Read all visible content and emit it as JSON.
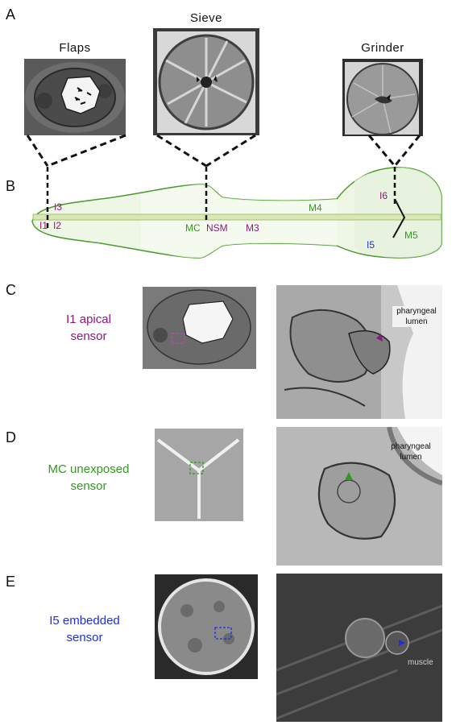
{
  "panels": {
    "a": "A",
    "b": "B",
    "c": "C",
    "d": "D",
    "e": "E"
  },
  "panel_a": {
    "flaps": "Flaps",
    "sieve": "Sieve",
    "grinder": "Grinder"
  },
  "diagram": {
    "labels": {
      "i1": "I1",
      "i2": "I2",
      "i3": "I3",
      "mc": "MC",
      "nsm": "NSM",
      "m3": "M3",
      "m4": "M4",
      "i6": "I6",
      "i5": "I5",
      "m5": "M5"
    },
    "colors": {
      "purple": "#8a1a7e",
      "green": "#2f9a1e",
      "blue": "#1d2ee0",
      "outline": "#4a9a2a"
    }
  },
  "panel_c": {
    "line1": "I1 apical",
    "line2": "sensor",
    "lumen1": "pharyngeal",
    "lumen2": "lumen"
  },
  "panel_d": {
    "line1": "MC unexposed",
    "line2": "sensor",
    "lumen1": "pharyngeal",
    "lumen2": "lumen"
  },
  "panel_e": {
    "line1": "I5 embedded",
    "line2": "sensor",
    "muscle": "muscle"
  }
}
